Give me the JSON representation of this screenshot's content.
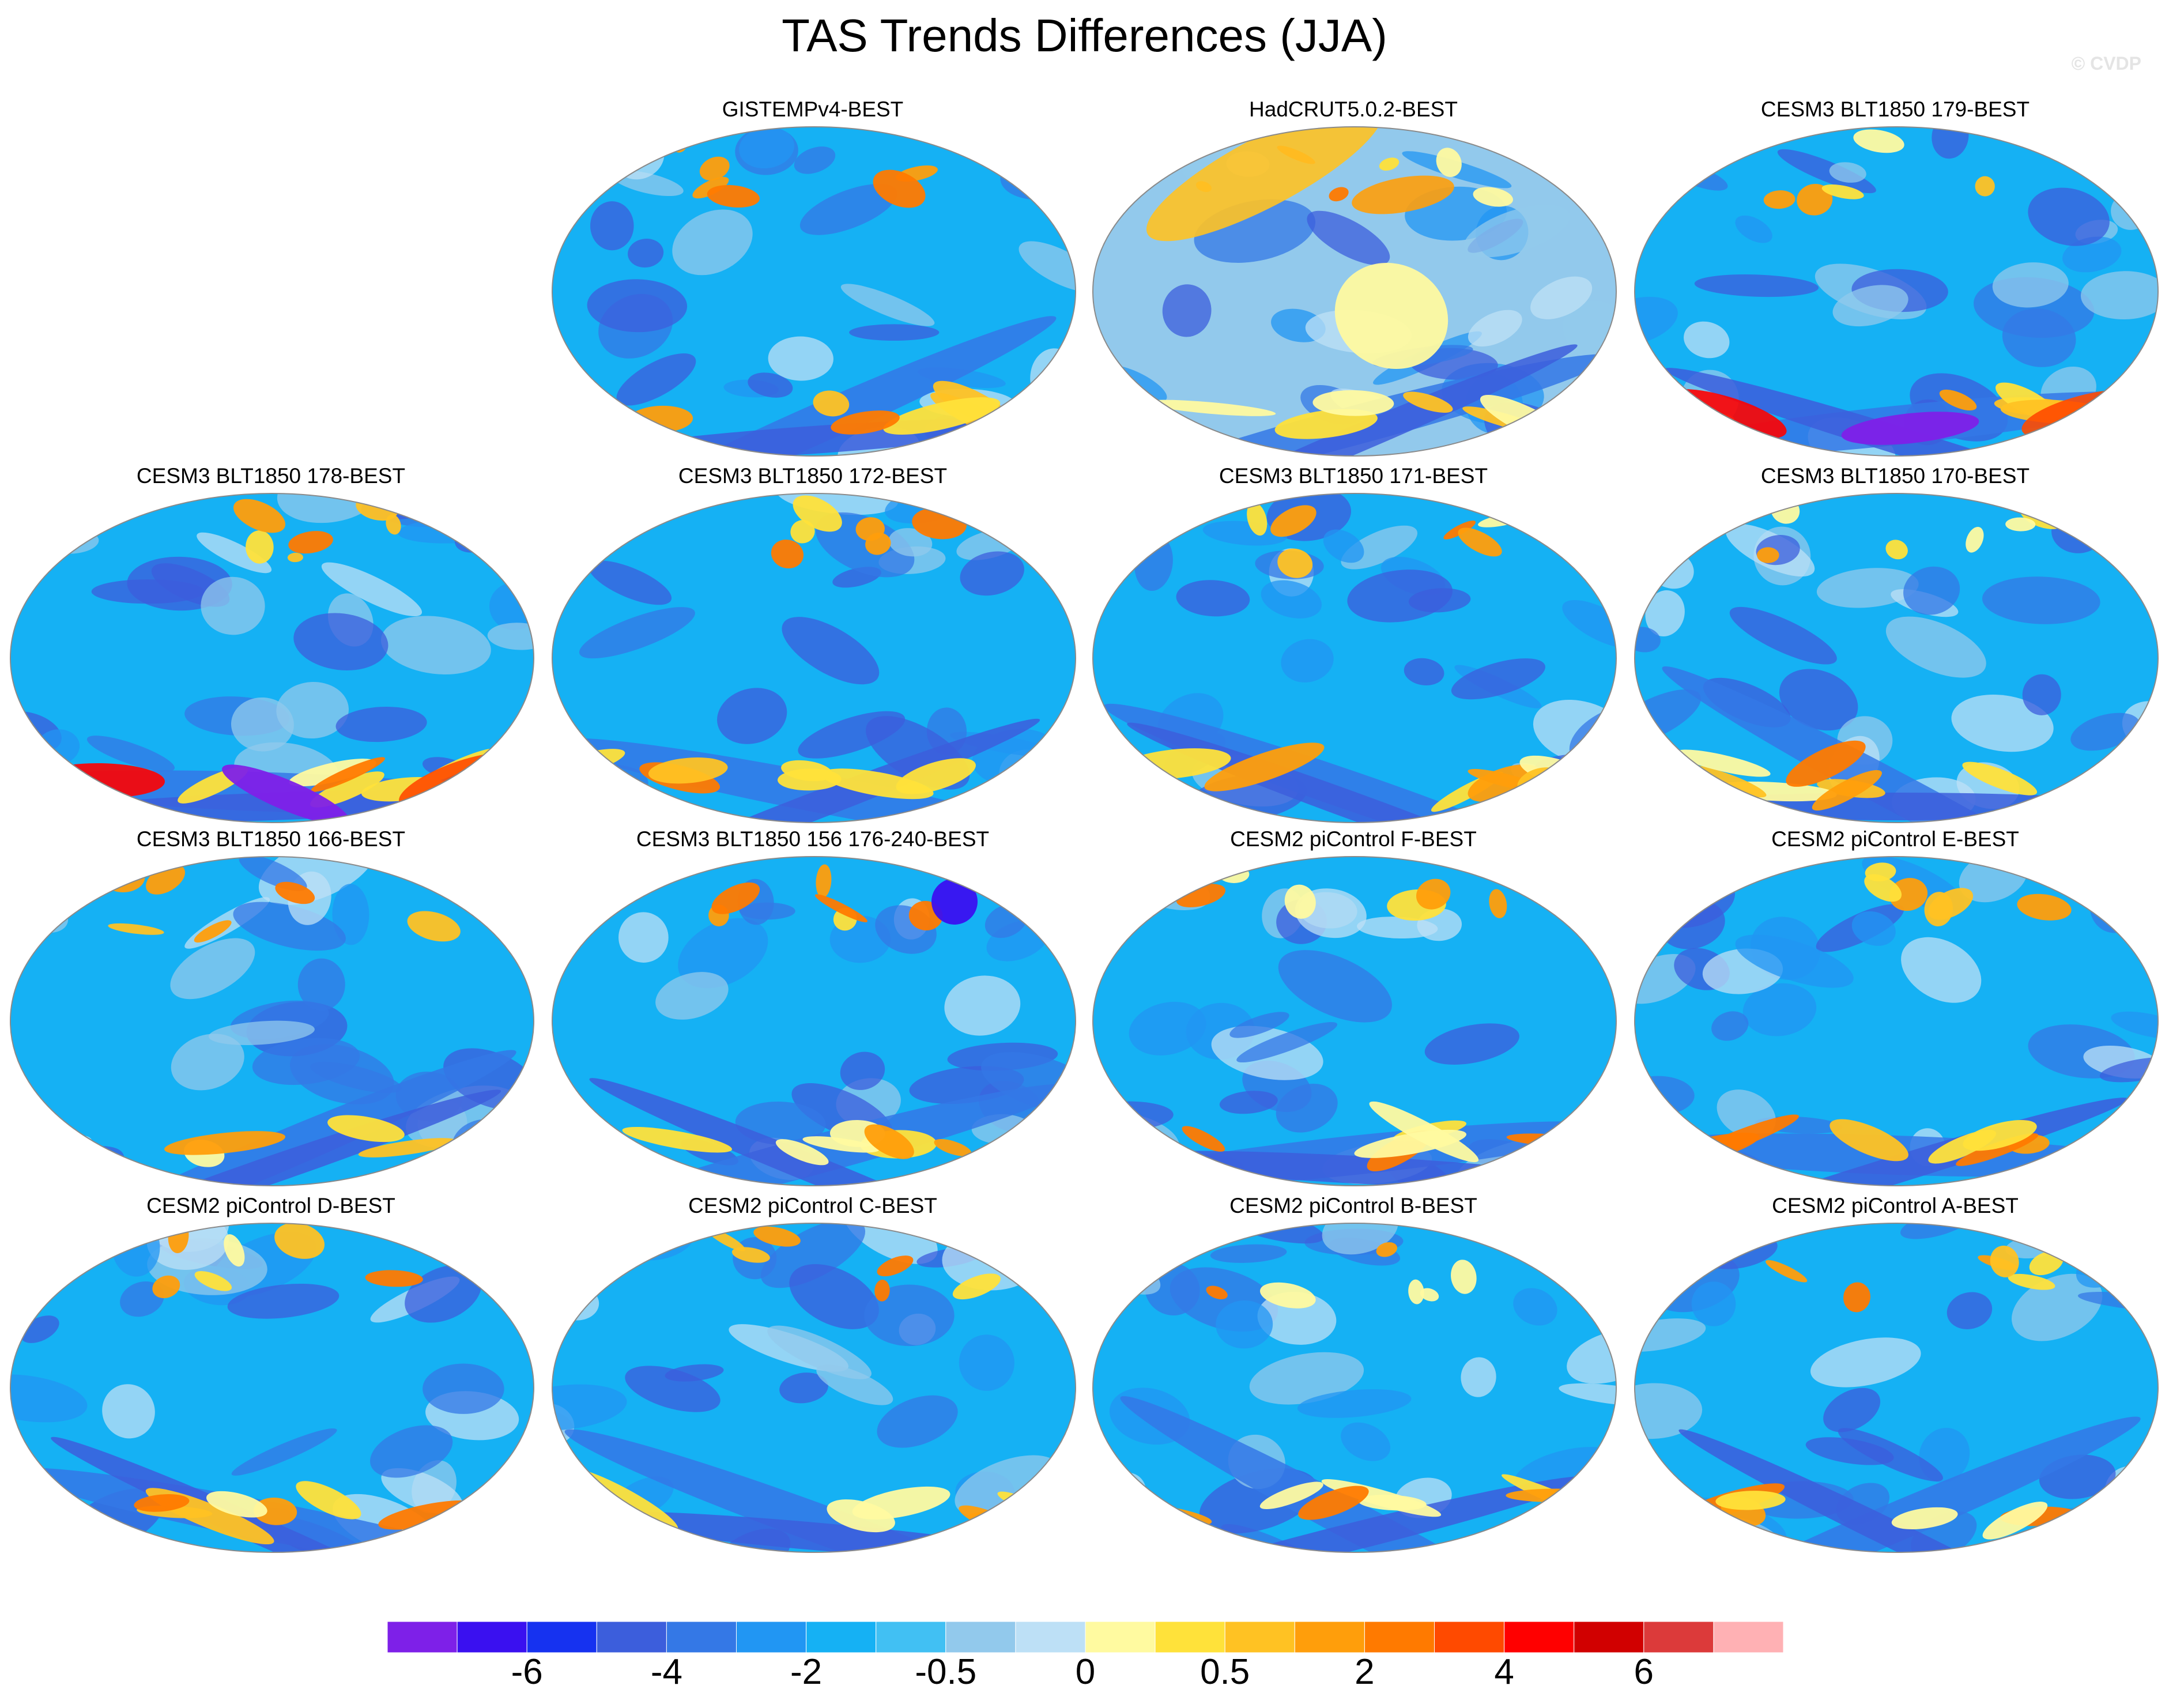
{
  "title": "TAS Trends Differences (JJA)",
  "watermark": "© CVDP",
  "chart_data": {
    "type": "heatmap",
    "title": "TAS Trends Differences (JJA)",
    "projection": "Robinson (global map panels)",
    "panels": [
      {
        "title": "GISTEMPv4-BEST",
        "row": 1,
        "col": 2
      },
      {
        "title": "HadCRUT5.0.2-BEST",
        "row": 1,
        "col": 3
      },
      {
        "title": "CESM3 BLT1850 179-BEST",
        "row": 1,
        "col": 4
      },
      {
        "title": "CESM3 BLT1850 178-BEST",
        "row": 2,
        "col": 1
      },
      {
        "title": "CESM3 BLT1850 172-BEST",
        "row": 2,
        "col": 2
      },
      {
        "title": "CESM3 BLT1850 171-BEST",
        "row": 2,
        "col": 3
      },
      {
        "title": "CESM3 BLT1850 170-BEST",
        "row": 2,
        "col": 4
      },
      {
        "title": "CESM3 BLT1850 166-BEST",
        "row": 3,
        "col": 1
      },
      {
        "title": "CESM3 BLT1850 156 176-240-BEST",
        "row": 3,
        "col": 2
      },
      {
        "title": "CESM2 piControl F-BEST",
        "row": 3,
        "col": 3
      },
      {
        "title": "CESM2 piControl E-BEST",
        "row": 3,
        "col": 4
      },
      {
        "title": "CESM2 piControl D-BEST",
        "row": 4,
        "col": 1
      },
      {
        "title": "CESM2 piControl C-BEST",
        "row": 4,
        "col": 2
      },
      {
        "title": "CESM2 piControl B-BEST",
        "row": 4,
        "col": 3
      },
      {
        "title": "CESM2 piControl A-BEST",
        "row": 4,
        "col": 4
      }
    ],
    "colorbar": {
      "colors": [
        "#7e20e8",
        "#3a10f0",
        "#1632f0",
        "#3c5edc",
        "#3478e6",
        "#2196f3",
        "#15b1f4",
        "#41c0f3",
        "#92c9ec",
        "#bde0f6",
        "#fffaa0",
        "#ffe23a",
        "#ffc223",
        "#ff9e0b",
        "#ff7a00",
        "#ff4a00",
        "#ff0000",
        "#d10000",
        "#dc3a3a",
        "#ffb1b4"
      ],
      "tick_labels": [
        "-6",
        "-4",
        "-2",
        "-0.5",
        "0",
        "0.5",
        "2",
        "4",
        "6"
      ],
      "tick_boundaries": [
        2,
        4,
        6,
        8,
        10,
        12,
        14,
        16,
        18
      ]
    }
  }
}
